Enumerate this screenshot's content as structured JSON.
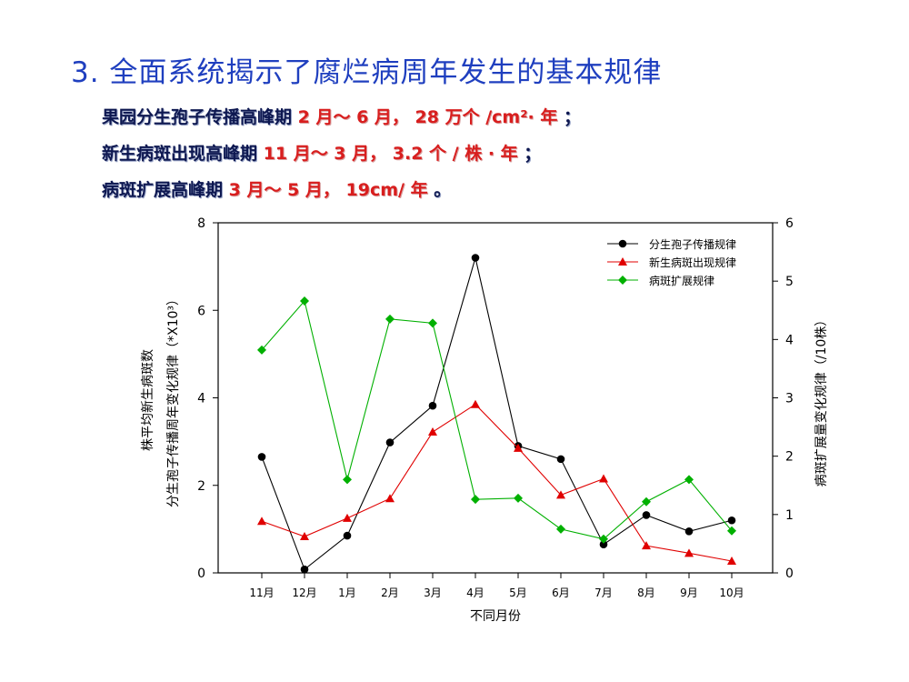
{
  "slide": {
    "title": "3. 全面系统揭示了腐烂病周年发生的基本规律",
    "points": [
      {
        "label": "果园分生孢子传播高峰期",
        "value": "2 月～ 6 月， 28 万个 /cm²· 年",
        "end": "；"
      },
      {
        "label": "新生病斑出现高峰期",
        "value": "11 月～ 3 月， 3.2 个 / 株 · 年",
        "end": "；"
      },
      {
        "label": "病斑扩展高峰期",
        "value": "3 月～ 5 月， 19cm/ 年",
        "end": "。"
      }
    ]
  },
  "chart_data": {
    "type": "line",
    "categories": [
      "11月",
      "12月",
      "1月",
      "2月",
      "3月",
      "4月",
      "5月",
      "6月",
      "7月",
      "8月",
      "9月",
      "10月"
    ],
    "xlabel": "不同月份",
    "ylabel_left": [
      "株平均新生病斑数",
      "分生孢子传播周年变化规律（*X10³）"
    ],
    "ylabel_right": "病斑扩展量变化规律（/10株）",
    "ylim_left": [
      0,
      8
    ],
    "yticks_left": [
      0,
      2,
      4,
      6,
      8
    ],
    "ylim_right": [
      0,
      6
    ],
    "yticks_right": [
      0,
      1,
      2,
      3,
      4,
      5,
      6
    ],
    "grid": false,
    "legend_position": "top-right",
    "series": [
      {
        "name": "分生孢子传播规律",
        "color": "#000000",
        "marker": "circle",
        "axis": "left",
        "values": [
          2.65,
          0.08,
          0.85,
          2.98,
          3.82,
          7.2,
          2.9,
          2.6,
          0.65,
          1.32,
          0.95,
          1.2
        ]
      },
      {
        "name": "新生病斑出现规律",
        "color": "#e00000",
        "marker": "triangle",
        "axis": "left",
        "values": [
          1.18,
          0.83,
          1.25,
          1.7,
          3.22,
          3.85,
          2.85,
          1.78,
          2.15,
          0.62,
          0.45,
          0.27
        ]
      },
      {
        "name": "病斑扩展规律",
        "color": "#00b000",
        "marker": "diamond",
        "axis": "right",
        "values": [
          3.82,
          4.66,
          1.6,
          4.35,
          4.28,
          1.26,
          1.28,
          0.75,
          0.58,
          1.22,
          1.6,
          0.72
        ]
      }
    ]
  }
}
